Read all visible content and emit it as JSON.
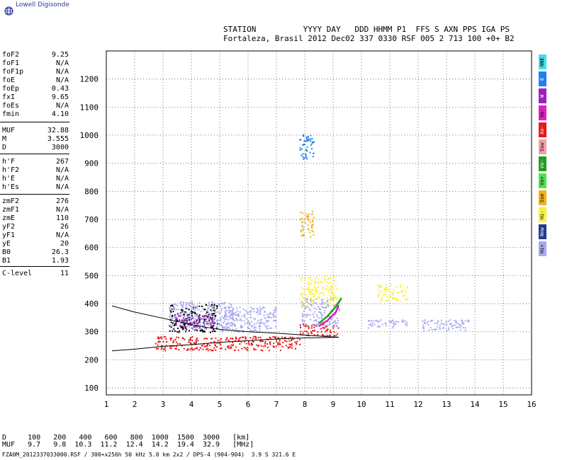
{
  "app_title": "Lowell Digisonde",
  "header": {
    "line1": "STATION          YYYY DAY   DDD HHMM P1  FFS S AXN PPS IGA PS",
    "line2": "Fortaleza, Brasil 2012 Dec02 337 0330 RSF 005 2 713 100 +0+ B2"
  },
  "params": [
    {
      "label": "foF2",
      "value": "9.25"
    },
    {
      "label": "foF1",
      "value": "N/A"
    },
    {
      "label": "foF1p",
      "value": "N/A"
    },
    {
      "label": "foE",
      "value": "N/A"
    },
    {
      "label": "foEp",
      "value": "0.43"
    },
    {
      "label": "fxI",
      "value": "9.65"
    },
    {
      "label": "foEs",
      "value": "N/A"
    },
    {
      "label": "fmin",
      "value": "4.10"
    },
    {
      "label": "MUF",
      "value": "32.88"
    },
    {
      "label": "M",
      "value": "3.555"
    },
    {
      "label": "D",
      "value": "3000"
    },
    {
      "label": "h'F",
      "value": "267"
    },
    {
      "label": "h'F2",
      "value": "N/A"
    },
    {
      "label": "h'E",
      "value": "N/A"
    },
    {
      "label": "h'Es",
      "value": "N/A"
    },
    {
      "label": "zmF2",
      "value": "276"
    },
    {
      "label": "zmF1",
      "value": "N/A"
    },
    {
      "label": "zmE",
      "value": "110"
    },
    {
      "label": "yF2",
      "value": "26"
    },
    {
      "label": "yF1",
      "value": "N/A"
    },
    {
      "label": "yE",
      "value": "20"
    },
    {
      "label": "B0",
      "value": "26.3"
    },
    {
      "label": "B1",
      "value": "1.93"
    },
    {
      "label": "C-level",
      "value": "11"
    }
  ],
  "legend": [
    {
      "label": "NNE",
      "color": "#40e0f0"
    },
    {
      "label": "E",
      "color": "#2080f0"
    },
    {
      "label": "W",
      "color": "#a020c0"
    },
    {
      "label": "Vo-",
      "color": "#e020c0"
    },
    {
      "label": "Xo-",
      "color": "#e81818"
    },
    {
      "label": "Ssw",
      "color": "#f0a0a8"
    },
    {
      "label": "Vo-",
      "color": "#20a020"
    },
    {
      "label": "Vo+",
      "color": "#50e050"
    },
    {
      "label": "Sse",
      "color": "#f0b020"
    },
    {
      "label": "Hi-",
      "color": "#f8f040"
    },
    {
      "label": "Nnw",
      "color": "#203c90"
    },
    {
      "label": "Hi+",
      "color": "#a8a8f0"
    }
  ],
  "footer": {
    "d_row": "D     100   200   400   600   800  1000  1500  3000   [km]",
    "muf_row": "MUF   9.7   9.8  10.3  11.2  12.4  14.2  19.4  32.9   [MHz]",
    "file": "FZA0M_2012337033000.RSF / 300+x256h 50 kHz 5.0 km 2x2 / DPS-4 (904-904)  3.9 S 321.6 E"
  },
  "chart_data": {
    "type": "scatter",
    "xlabel": "",
    "ylabel": "",
    "xlim": [
      1,
      16
    ],
    "ylim": [
      75,
      1300
    ],
    "x_ticks": [
      1,
      2,
      3,
      4,
      5,
      6,
      7,
      8,
      9,
      10,
      11,
      12,
      13,
      14,
      15,
      16
    ],
    "y_ticks": [
      100,
      200,
      300,
      400,
      500,
      600,
      700,
      800,
      900,
      1000,
      1100,
      1200
    ],
    "grid": true,
    "traces": [
      {
        "name": "upper-trace",
        "points": [
          [
            1.2,
            392
          ],
          [
            2,
            370
          ],
          [
            3,
            348
          ],
          [
            4,
            325
          ],
          [
            5,
            308
          ],
          [
            6,
            300
          ],
          [
            7,
            295
          ],
          [
            8,
            288
          ],
          [
            9.2,
            280
          ]
        ]
      },
      {
        "name": "lower-trace",
        "points": [
          [
            1.2,
            232
          ],
          [
            2,
            238
          ],
          [
            3,
            248
          ],
          [
            4,
            254
          ],
          [
            5,
            262
          ],
          [
            6,
            268
          ],
          [
            7,
            274
          ],
          [
            8,
            278
          ],
          [
            9.2,
            280
          ]
        ]
      }
    ],
    "clusters": [
      {
        "color": "#000000",
        "x": [
          3.2,
          4.9
        ],
        "y": [
          300,
          400
        ]
      },
      {
        "color": "#a8a8f0",
        "x": [
          3.2,
          5.5
        ],
        "y": [
          310,
          410
        ]
      },
      {
        "color": "#a020c0",
        "x": [
          3.4,
          4.8
        ],
        "y": [
          320,
          360
        ]
      },
      {
        "color": "#e81818",
        "x": [
          2.7,
          7.8
        ],
        "y": [
          235,
          285
        ]
      },
      {
        "color": "#a8a8f0",
        "x": [
          5.0,
          7.0
        ],
        "y": [
          300,
          390
        ]
      },
      {
        "color": "#e81818",
        "x": [
          7.8,
          9.2
        ],
        "y": [
          285,
          330
        ]
      },
      {
        "color": "#f8f040",
        "x": [
          7.8,
          9.1
        ],
        "y": [
          390,
          500
        ]
      },
      {
        "color": "#a8a8f0",
        "x": [
          7.8,
          9.2
        ],
        "y": [
          320,
          420
        ]
      },
      {
        "color": "#a8a8f0",
        "x": [
          10.2,
          11.6
        ],
        "y": [
          315,
          345
        ]
      },
      {
        "color": "#f8f040",
        "x": [
          10.5,
          11.6
        ],
        "y": [
          410,
          470
        ]
      },
      {
        "color": "#a8a8f0",
        "x": [
          12.1,
          13.8
        ],
        "y": [
          305,
          345
        ]
      },
      {
        "color": "#2080f0",
        "x": [
          7.8,
          8.3
        ],
        "y": [
          915,
          1005
        ]
      },
      {
        "color": "#f0b020",
        "x": [
          7.8,
          8.3
        ],
        "y": [
          640,
          730
        ]
      }
    ],
    "curves": [
      {
        "color": "#20a020",
        "points": [
          [
            8.5,
            330
          ],
          [
            8.8,
            355
          ],
          [
            9.1,
            390
          ],
          [
            9.3,
            420
          ]
        ]
      },
      {
        "color": "#e020c0",
        "points": [
          [
            8.5,
            320
          ],
          [
            8.8,
            340
          ],
          [
            9.1,
            370
          ],
          [
            9.2,
            395
          ]
        ]
      }
    ]
  }
}
